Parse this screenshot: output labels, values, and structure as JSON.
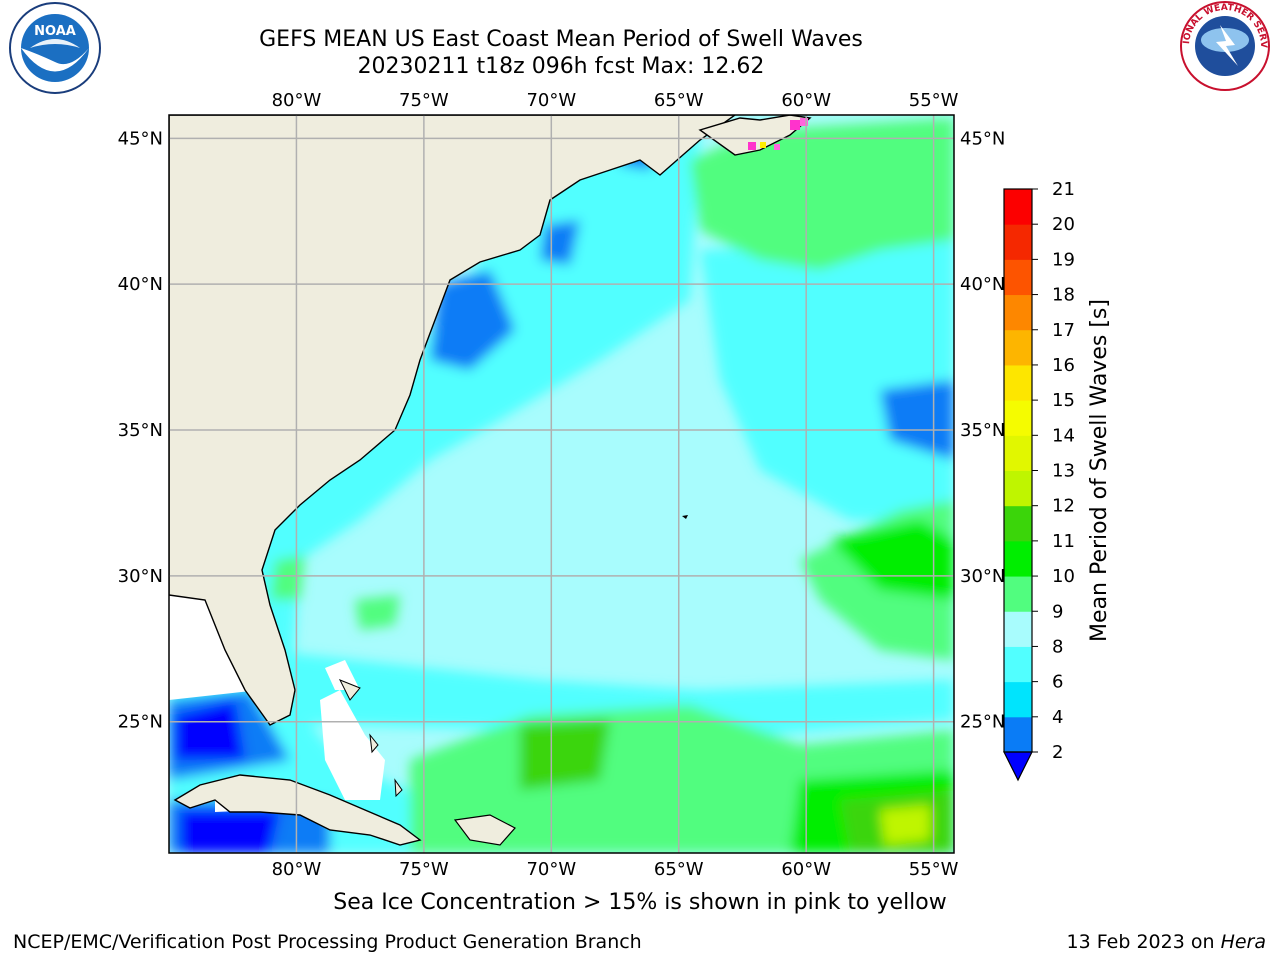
{
  "header": {
    "title": "GEFS MEAN US East Coast Mean Period of Swell Waves",
    "subtitle": "20230211 t18z 096h fcst   Max: 12.62"
  },
  "logos": {
    "left": "noaa-logo",
    "right": "national-weather-service-logo",
    "left_text": "NOAA",
    "right_text": "NATIONAL WEATHER SERVICE"
  },
  "map": {
    "lon_ticks": [
      "80°W",
      "75°W",
      "70°W",
      "65°W",
      "60°W",
      "55°W"
    ],
    "lat_ticks": [
      "45°N",
      "40°N",
      "35°N",
      "30°N",
      "25°N"
    ],
    "lon_range": [
      -85,
      -54.2
    ],
    "lat_range": [
      20.5,
      45.8
    ],
    "colors": {
      "land": "#efedde",
      "coast": "#000000",
      "grid": "#b0b0b0",
      "no_data": "#ffffff"
    }
  },
  "colorbar": {
    "label": "Mean Period of Swell Waves [s]",
    "ticks": [
      "2",
      "4",
      "6",
      "8",
      "9",
      "10",
      "11",
      "12",
      "13",
      "14",
      "15",
      "16",
      "17",
      "18",
      "19",
      "20",
      "21"
    ],
    "colors": [
      "#0a7cf6",
      "#00e4fd",
      "#51ffff",
      "#a8fcfd",
      "#51fd7f",
      "#00ee00",
      "#3bd50a",
      "#bff500",
      "#e1f700",
      "#f5fc00",
      "#fde600",
      "#fdb500",
      "#fd8700",
      "#fd5400",
      "#f52800",
      "#fc0000"
    ],
    "under_color": "#0000ff"
  },
  "footer": {
    "ice_note": "Sea Ice Concentration > 15% is shown in pink to yellow",
    "credit": "NCEP/EMC/Verification Post Processing Product Generation Branch",
    "date": "13 Feb 2023 on",
    "host": "Hera"
  }
}
